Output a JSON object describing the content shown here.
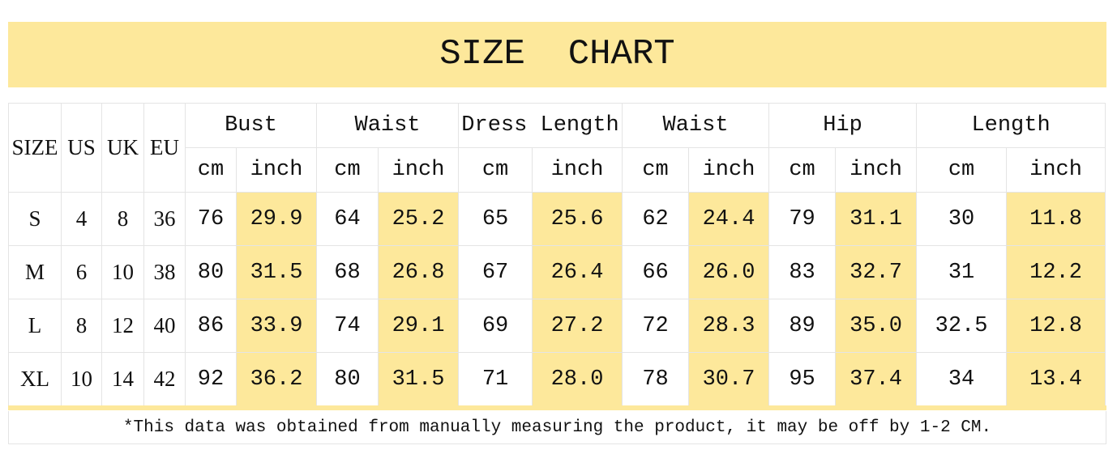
{
  "header": {
    "title": "SIZE  CHART"
  },
  "table": {
    "left_headers": [
      "SIZE",
      "US",
      "UK",
      "EU"
    ],
    "groups": [
      "Bust",
      "Waist",
      "Dress Length",
      "Waist",
      "Hip",
      "Length"
    ],
    "units": [
      "cm",
      "inch",
      "cm",
      "inch",
      "cm",
      "inch",
      "cm",
      "inch",
      "cm",
      "inch",
      "cm",
      "inch"
    ],
    "rows": [
      [
        "S",
        "4",
        "8",
        "36",
        "76",
        "29.9",
        "64",
        "25.2",
        "65",
        "25.6",
        "62",
        "24.4",
        "79",
        "31.1",
        "30",
        "11.8"
      ],
      [
        "M",
        "6",
        "10",
        "38",
        "80",
        "31.5",
        "68",
        "26.8",
        "67",
        "26.4",
        "66",
        "26.0",
        "83",
        "32.7",
        "31",
        "12.2"
      ],
      [
        "L",
        "8",
        "12",
        "40",
        "86",
        "33.9",
        "74",
        "29.1",
        "69",
        "27.2",
        "72",
        "28.3",
        "89",
        "35.0",
        "32.5",
        "12.8"
      ],
      [
        "XL",
        "10",
        "14",
        "42",
        "92",
        "36.2",
        "80",
        "31.5",
        "71",
        "28.0",
        "78",
        "30.7",
        "95",
        "37.4",
        "34",
        "13.4"
      ]
    ]
  },
  "footnote": "*This data was obtained from manually measuring the product, it may be off by 1-2 CM."
}
